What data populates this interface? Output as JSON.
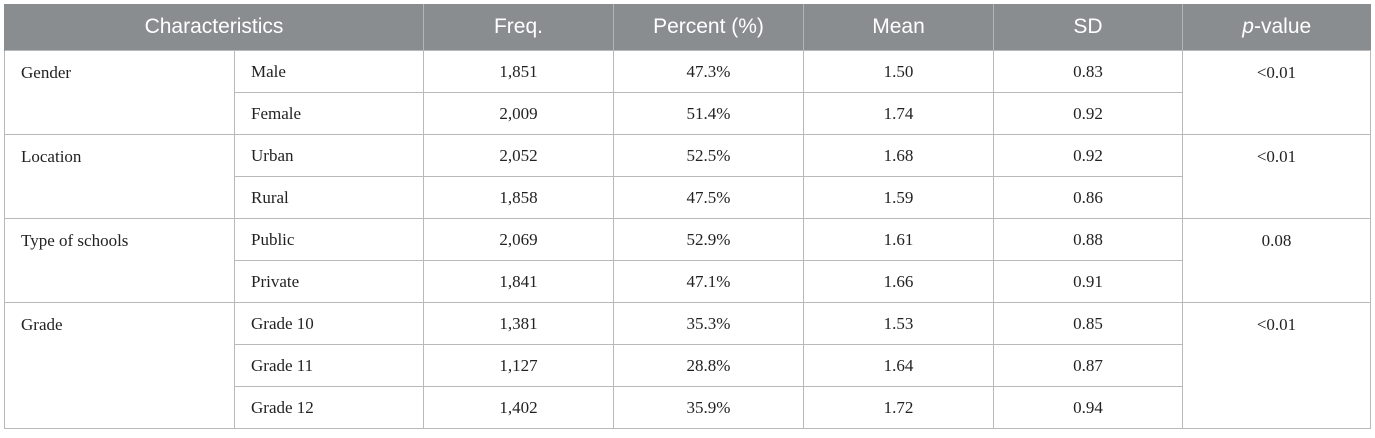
{
  "header": {
    "characteristics": "Characteristics",
    "freq": "Freq.",
    "percent": "Percent (%)",
    "mean": "Mean",
    "sd": "SD",
    "p_italic": "p",
    "p_rest": "-value"
  },
  "groups": [
    {
      "name": "Gender",
      "p": "<0.01",
      "rows": [
        {
          "label": "Male",
          "freq": "1,851",
          "percent": "47.3%",
          "mean": "1.50",
          "sd": "0.83"
        },
        {
          "label": "Female",
          "freq": "2,009",
          "percent": "51.4%",
          "mean": "1.74",
          "sd": "0.92"
        }
      ]
    },
    {
      "name": "Location",
      "p": "<0.01",
      "rows": [
        {
          "label": "Urban",
          "freq": "2,052",
          "percent": "52.5%",
          "mean": "1.68",
          "sd": "0.92"
        },
        {
          "label": "Rural",
          "freq": "1,858",
          "percent": "47.5%",
          "mean": "1.59",
          "sd": "0.86"
        }
      ]
    },
    {
      "name": "Type of schools",
      "p": "0.08",
      "rows": [
        {
          "label": "Public",
          "freq": "2,069",
          "percent": "52.9%",
          "mean": "1.61",
          "sd": "0.88"
        },
        {
          "label": "Private",
          "freq": "1,841",
          "percent": "47.1%",
          "mean": "1.66",
          "sd": "0.91"
        }
      ]
    },
    {
      "name": "Grade",
      "p": "<0.01",
      "rows": [
        {
          "label": "Grade 10",
          "freq": "1,381",
          "percent": "35.3%",
          "mean": "1.53",
          "sd": "0.85"
        },
        {
          "label": "Grade 11",
          "freq": "1,127",
          "percent": "28.8%",
          "mean": "1.64",
          "sd": "0.87"
        },
        {
          "label": "Grade 12",
          "freq": "1,402",
          "percent": "35.9%",
          "mean": "1.72",
          "sd": "0.94"
        }
      ]
    }
  ],
  "colors": {
    "header_bg": "#8a8d8f",
    "header_text": "#ffffff",
    "border": "#b9b9b9"
  }
}
